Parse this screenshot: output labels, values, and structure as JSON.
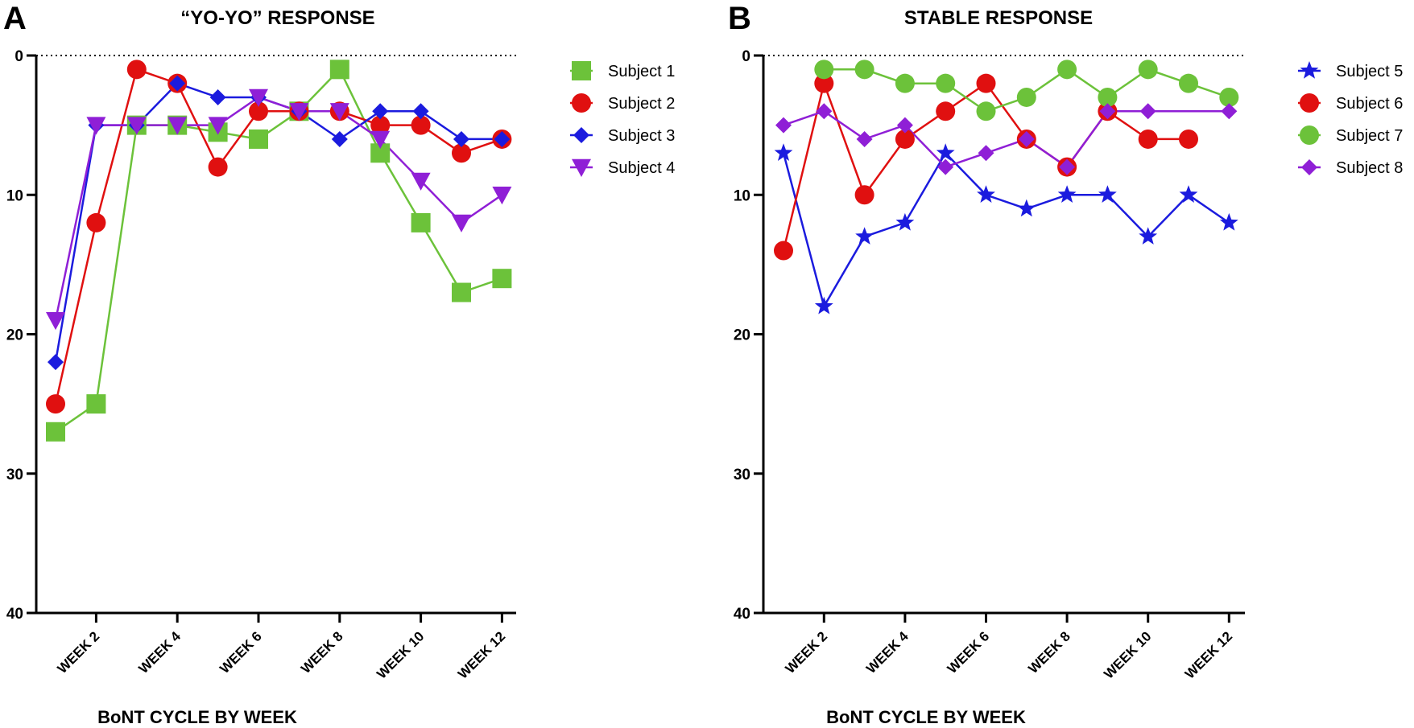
{
  "chart_data": [
    {
      "panel": "A",
      "type": "line",
      "title": "“YO-YO” RESPONSE",
      "xlabel": "BoNT CYCLE BY WEEK",
      "ylabel": "",
      "x": [
        1,
        2,
        3,
        4,
        5,
        6,
        7,
        8,
        9,
        10,
        11,
        12
      ],
      "x_tick_labels": [
        {
          "x": 2,
          "label": "WEEK 2"
        },
        {
          "x": 4,
          "label": "WEEK 4"
        },
        {
          "x": 6,
          "label": "WEEK 6"
        },
        {
          "x": 8,
          "label": "WEEK 8"
        },
        {
          "x": 10,
          "label": "WEEK 10"
        },
        {
          "x": 12,
          "label": "WEEK 12"
        }
      ],
      "y_ticks": [
        0,
        10,
        20,
        30,
        40
      ],
      "ylim": [
        0,
        40
      ],
      "y_inverted": true,
      "reference_line": {
        "y": 0,
        "style": "dotted"
      },
      "legend_position": "right",
      "series": [
        {
          "name": "Subject 1",
          "color": "#6cc23a",
          "marker": "square",
          "values": [
            27,
            25,
            5,
            5,
            5.5,
            6,
            4,
            1,
            7,
            12,
            17,
            16
          ]
        },
        {
          "name": "Subject 2",
          "color": "#e01010",
          "marker": "circle",
          "values": [
            25,
            12,
            1,
            2,
            8,
            4,
            4,
            4,
            5,
            5,
            7,
            6
          ]
        },
        {
          "name": "Subject 3",
          "color": "#1b1bde",
          "marker": "diamond",
          "values": [
            22,
            5,
            5,
            2,
            3,
            3,
            4,
            6,
            4,
            4,
            6,
            6
          ]
        },
        {
          "name": "Subject 4",
          "color": "#8f1fd6",
          "marker": "triangle-down",
          "values": [
            19,
            5,
            5,
            5,
            5,
            3,
            4,
            4,
            6,
            9,
            12,
            10
          ]
        }
      ]
    },
    {
      "panel": "B",
      "type": "line",
      "title": "STABLE RESPONSE",
      "xlabel": "BoNT CYCLE BY WEEK",
      "ylabel": "",
      "x": [
        1,
        2,
        3,
        4,
        5,
        6,
        7,
        8,
        9,
        10,
        11,
        12
      ],
      "x_tick_labels": [
        {
          "x": 2,
          "label": "WEEK 2"
        },
        {
          "x": 4,
          "label": "WEEK 4"
        },
        {
          "x": 6,
          "label": "WEEK 6"
        },
        {
          "x": 8,
          "label": "WEEK 8"
        },
        {
          "x": 10,
          "label": "WEEK 10"
        },
        {
          "x": 12,
          "label": "WEEK 12"
        }
      ],
      "y_ticks": [
        0,
        10,
        20,
        30,
        40
      ],
      "ylim": [
        0,
        40
      ],
      "y_inverted": true,
      "reference_line": {
        "y": 0,
        "style": "dotted"
      },
      "legend_position": "right",
      "series": [
        {
          "name": "Subject 5",
          "color": "#1b1bde",
          "marker": "star",
          "x": [
            1,
            2,
            3,
            4,
            5,
            6,
            7,
            8,
            9,
            10,
            11,
            12
          ],
          "values": [
            7,
            18,
            13,
            12,
            7,
            10,
            11,
            10,
            10,
            13,
            10,
            12
          ]
        },
        {
          "name": "Subject 6",
          "color": "#e01010",
          "marker": "circle",
          "x": [
            1,
            2,
            3,
            4,
            5,
            6,
            7,
            8,
            9,
            10,
            11
          ],
          "values": [
            14,
            2,
            10,
            6,
            4,
            2,
            6,
            8,
            4,
            6,
            6
          ]
        },
        {
          "name": "Subject 7",
          "color": "#6cc23a",
          "marker": "circle",
          "x": [
            2,
            3,
            4,
            5,
            6,
            7,
            8,
            9,
            10,
            11,
            12
          ],
          "values": [
            1,
            1,
            2,
            2,
            4,
            3,
            1,
            3,
            1,
            2,
            3
          ]
        },
        {
          "name": "Subject 8",
          "color": "#8f1fd6",
          "marker": "diamond",
          "x": [
            1,
            2,
            3,
            4,
            5,
            6,
            7,
            8,
            9,
            10,
            12
          ],
          "values": [
            5,
            4,
            6,
            5,
            8,
            7,
            6,
            8,
            4,
            4,
            4
          ]
        }
      ]
    }
  ]
}
